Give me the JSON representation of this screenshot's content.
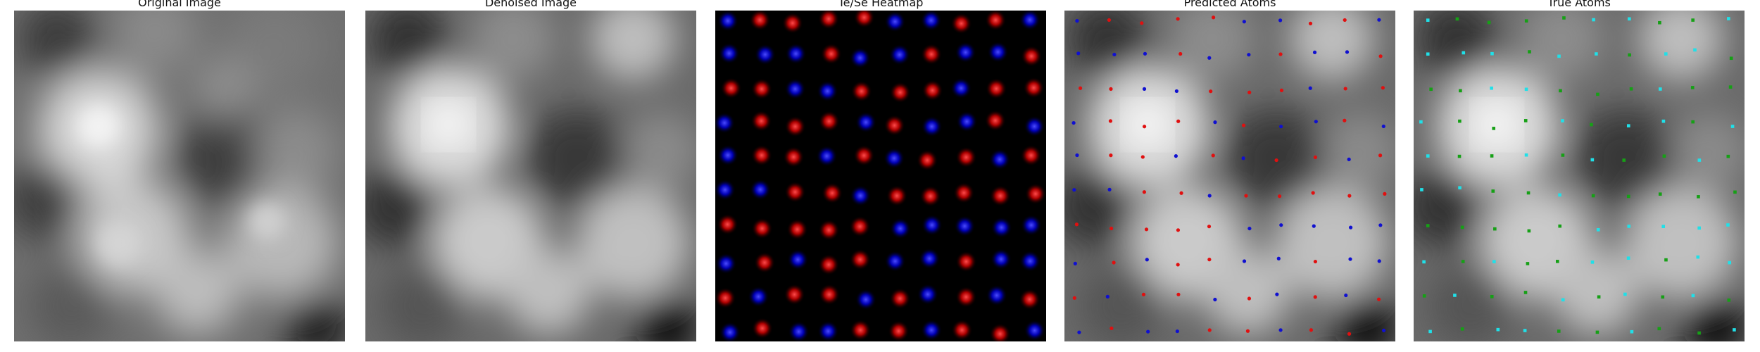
{
  "panels": [
    {
      "id": "original",
      "title": "Original Image"
    },
    {
      "id": "denoised",
      "title": "Denoised Image"
    },
    {
      "id": "heatmap",
      "title": "Te/Se Heatmap"
    },
    {
      "id": "predicted",
      "title": "Predicted Atoms"
    },
    {
      "id": "true",
      "title": "True Atoms"
    }
  ],
  "colors": {
    "te": "#ff1a1a",
    "se": "#1a1aff",
    "predicted_te": "#e01010",
    "predicted_se": "#1010d0",
    "true_te": "#16a016",
    "true_se": "#20e0e8",
    "background": "#000000"
  }
}
